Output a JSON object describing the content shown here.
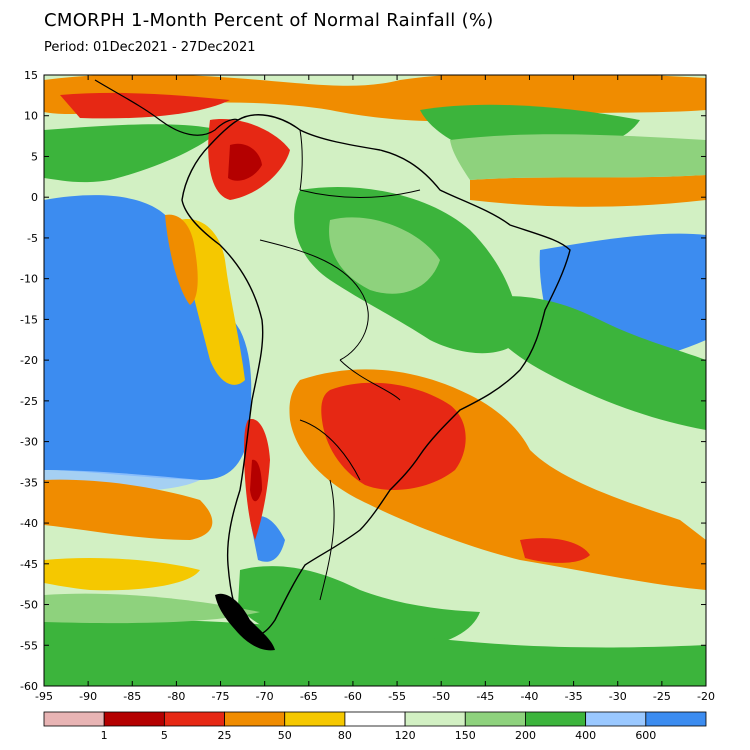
{
  "title": "CMORPH 1-Month Percent of Normal Rainfall (%)",
  "period": "Period: 01Dec2021 - 27Dec2021",
  "map": {
    "lat_ticks": [
      "15",
      "10",
      "5",
      "0",
      "-5",
      "-10",
      "-15",
      "-20",
      "-25",
      "-30",
      "-35",
      "-40",
      "-45",
      "-50",
      "-55",
      "-60"
    ],
    "lon_ticks": [
      "-95",
      "-90",
      "-85",
      "-80",
      "-75",
      "-70",
      "-65",
      "-60",
      "-55",
      "-50",
      "-45",
      "-40",
      "-35",
      "-30",
      "-25",
      "-20"
    ],
    "lat_range": [
      -60,
      15
    ],
    "lon_range": [
      -95,
      -20
    ]
  },
  "legend": {
    "colors": [
      "#e8b4b4",
      "#b40000",
      "#e62814",
      "#f08c00",
      "#f5c800",
      "#ffffff",
      "#d2f0c3",
      "#8ed27d",
      "#3cb43c",
      "#9ac8ff",
      "#3c8cf0"
    ],
    "labels": [
      "1",
      "5",
      "25",
      "50",
      "80",
      "120",
      "150",
      "200",
      "400",
      "600"
    ]
  },
  "palette": {
    "ocean_blue": "#3c8cf0",
    "light_blue": "#9ac8ff",
    "dark_green": "#3cb43c",
    "mid_green": "#8ed27d",
    "light_green": "#d2f0c3",
    "yellow": "#f5c800",
    "orange": "#f08c00",
    "red_orange": "#e62814",
    "dark_red": "#b40000"
  }
}
